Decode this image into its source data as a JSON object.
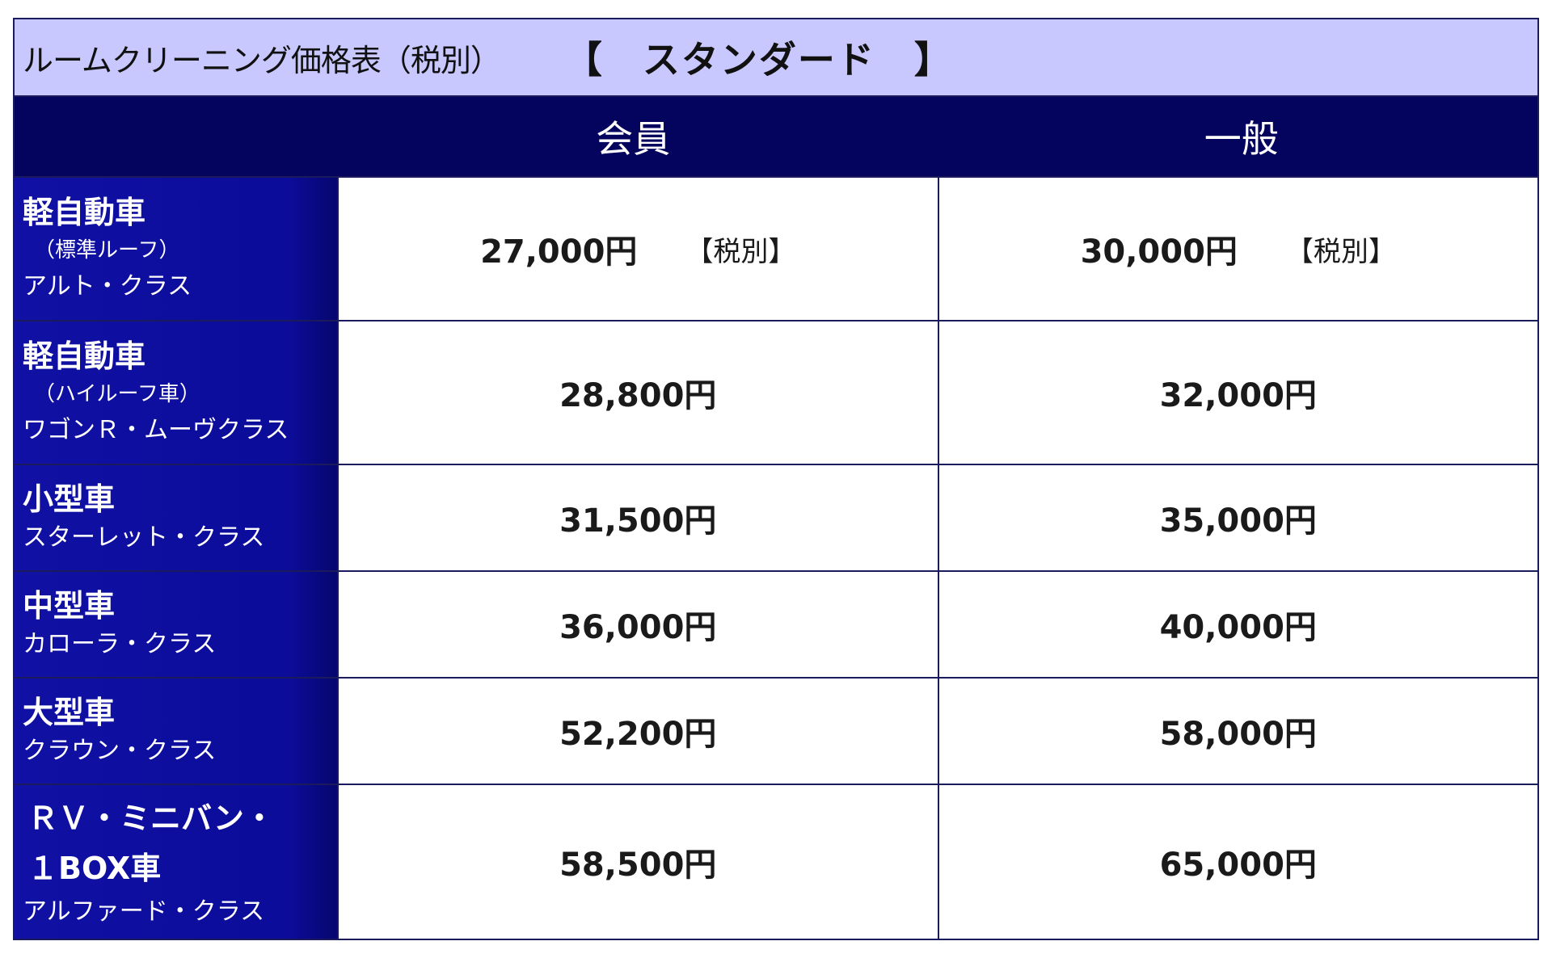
{
  "title": {
    "text": "ルームクリーニング価格表（税別）",
    "variant": "【　スタンダード　】"
  },
  "columns": {
    "member": "会員",
    "general": "一般"
  },
  "rows": [
    {
      "label_main": "軽自動車",
      "label_sub": "（標準ルーフ）",
      "label_class": "アルト・クラス",
      "member_price": "27,000円",
      "member_note": "【税別】",
      "general_price": "30,000円",
      "general_note": "【税別】"
    },
    {
      "label_main": "軽自動車",
      "label_sub": "（ハイルーフ車）",
      "label_class": "ワゴンＲ・ムーヴクラス",
      "member_price": "28,800円",
      "general_price": "32,000円"
    },
    {
      "label_main": "小型車",
      "label_class": "スターレット・クラス",
      "member_price": "31,500円",
      "general_price": "35,000円"
    },
    {
      "label_main": "中型車",
      "label_class": "カローラ・クラス",
      "member_price": "36,000円",
      "general_price": "40,000円"
    },
    {
      "label_main": "大型車",
      "label_class": "クラウン・クラス",
      "member_price": "52,200円",
      "general_price": "58,000円"
    },
    {
      "label_main": "ＲＶ・ミニバン・",
      "label_main2": "１BOX車",
      "label_class": "アルファード・クラス",
      "member_price": "58,500円",
      "general_price": "65,000円"
    }
  ]
}
